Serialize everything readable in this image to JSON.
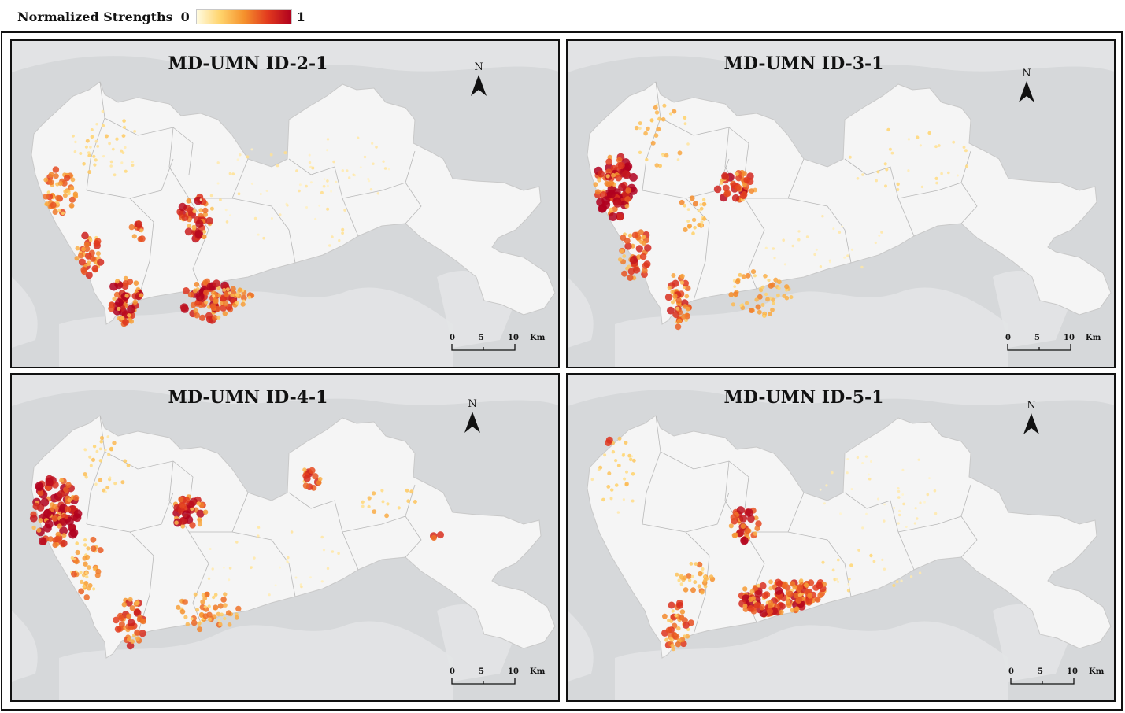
{
  "legend": {
    "title": "Normalized Strengths",
    "min": "0",
    "max": "1",
    "gradient": [
      "#fffbe0",
      "#ffd36b",
      "#f5922d",
      "#e23a1e",
      "#b0001e"
    ]
  },
  "colors": {
    "water": "#d6d8da",
    "land_outside": "#e3e4e5",
    "city": "#f5f5f5",
    "district_border": "#b8b8b8"
  },
  "north_label": "N",
  "scale_bar": {
    "labels": [
      "0",
      "5",
      "10"
    ],
    "unit": "Km"
  },
  "panels": [
    {
      "title": "MD-UMN ID-2-1"
    },
    {
      "title": "MD-UMN ID-3-1"
    },
    {
      "title": "MD-UMN ID-4-1"
    },
    {
      "title": "MD-UMN ID-5-1"
    }
  ]
}
